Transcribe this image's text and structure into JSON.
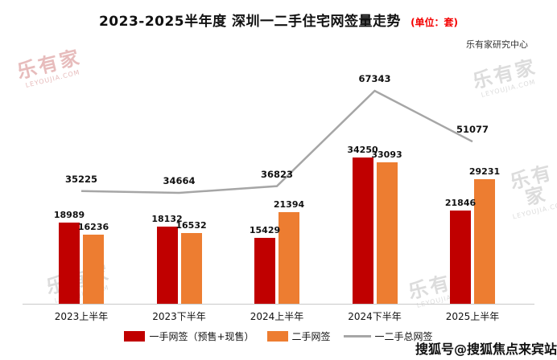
{
  "header": {
    "title": "2023-2025半年度 深圳一二手住宅网签量走势",
    "unit": "(单位：套)",
    "source": "乐有家研究中心"
  },
  "watermark": {
    "brand": "乐有家",
    "domain": "LEYOUJIA.COM"
  },
  "footer_watermark": "搜狐号@搜狐焦点来宾站",
  "chart_data": {
    "type": "bar",
    "title": "2023-2025半年度 深圳一二手住宅网签量走势",
    "unit": "套",
    "categories": [
      "2023上半年",
      "2023下半年",
      "2024上半年",
      "2024下半年",
      "2025上半年"
    ],
    "series": [
      {
        "name": "一手网签（预售+现售）",
        "type": "bar",
        "color": "#c00000",
        "values": [
          18989,
          18132,
          15429,
          34250,
          21846
        ]
      },
      {
        "name": "二手网签",
        "type": "bar",
        "color": "#ed7d31",
        "values": [
          16236,
          16532,
          21394,
          33093,
          29231
        ]
      },
      {
        "name": "一二手总网签",
        "type": "line",
        "color": "#a6a6a6",
        "values": [
          35225,
          34664,
          36823,
          67343,
          51077
        ]
      }
    ],
    "legend_position": "bottom",
    "grid": false,
    "value_labels": true,
    "ylim": [
      0,
      70000
    ]
  }
}
